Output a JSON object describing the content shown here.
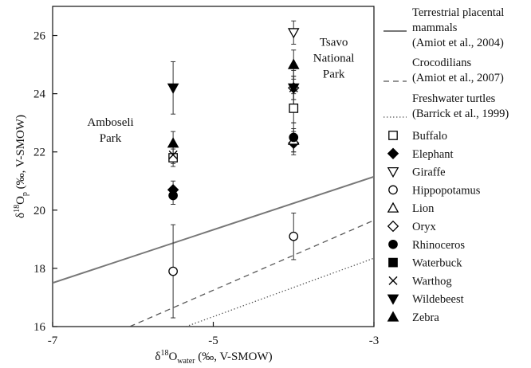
{
  "chart_data": {
    "type": "scatter",
    "xlabel": {
      "base": "δ",
      "sup": "18",
      "mid": "O",
      "sub": "water",
      "rest": " (‰, V-SMOW)"
    },
    "ylabel": {
      "base": "δ",
      "sup": "18",
      "mid": "O",
      "sub": "p",
      "rest": " (‰, V-SMOW)"
    },
    "xlim": [
      -7,
      -3
    ],
    "ylim": [
      16,
      27
    ],
    "x_ticks": [
      -7,
      -5,
      -3
    ],
    "x_tick_labels": [
      "-7",
      "-5",
      "-3"
    ],
    "y_ticks": [
      16,
      18,
      20,
      22,
      24,
      26
    ],
    "y_tick_labels": [
      "16",
      "18",
      "20",
      "22",
      "24",
      "26"
    ],
    "grid": false,
    "legend_position": "right",
    "annotations": [
      {
        "lines": [
          "Amboseli",
          "Park"
        ],
        "x": -6.28,
        "y": 22.9,
        "anchor": "middle"
      },
      {
        "lines": [
          "Tsavo",
          "National",
          "Park"
        ],
        "x": -3.5,
        "y": 25.65,
        "anchor": "middle"
      }
    ],
    "lines": [
      {
        "name_lines": [
          "Terrestrial placental",
          "mammals",
          "(Amiot et al., 2004)"
        ],
        "style": "solid",
        "color": "#777777",
        "x": [
          -7,
          -3
        ],
        "y": [
          17.5,
          21.15
        ]
      },
      {
        "name_lines": [
          "Crocodilians",
          "(Amiot et al., 2007)"
        ],
        "style": "dashed",
        "color": "#555555",
        "x": [
          -6.04,
          -3
        ],
        "y": [
          16.0,
          19.65
        ]
      },
      {
        "name_lines": [
          "Freshwater turtles",
          "(Barrick et al., 1999)"
        ],
        "style": "dotted",
        "color": "#555555",
        "x": [
          -5.34,
          -3
        ],
        "y": [
          16.0,
          18.35
        ]
      }
    ],
    "series": [
      {
        "name": "Buffalo",
        "marker": "square-open",
        "points": [
          {
            "x": -5.5,
            "y": 21.8,
            "err": 0.3
          },
          {
            "x": -4.0,
            "y": 23.5,
            "err": 0.5
          }
        ]
      },
      {
        "name": "Elephant",
        "marker": "diamond-filled",
        "points": [
          {
            "x": -5.5,
            "y": 20.7,
            "err": 0.3
          },
          {
            "x": -4.0,
            "y": 22.3,
            "err": 0.4
          }
        ]
      },
      {
        "name": "Giraffe",
        "marker": "triangle-down-open",
        "points": [
          {
            "x": -4.0,
            "y": 26.1,
            "err": 0.4
          }
        ]
      },
      {
        "name": "Hippopotamus",
        "marker": "circle-open",
        "points": [
          {
            "x": -5.5,
            "y": 17.9,
            "err": 1.6
          },
          {
            "x": -4.0,
            "y": 19.1,
            "err": 0.8
          }
        ]
      },
      {
        "name": "Lion",
        "marker": "triangle-up-open",
        "points": [
          {
            "x": -4.0,
            "y": 22.4,
            "err": 0.4
          }
        ]
      },
      {
        "name": "Oryx",
        "marker": "diamond-open",
        "points": [
          {
            "x": -4.0,
            "y": 24.2,
            "err": 0.4
          }
        ]
      },
      {
        "name": "Rhinoceros",
        "marker": "circle-filled",
        "points": [
          {
            "x": -5.5,
            "y": 20.5,
            "err": 0.3
          },
          {
            "x": -4.0,
            "y": 22.5,
            "err": 0.5
          }
        ]
      },
      {
        "name": "Waterbuck",
        "marker": "square-filled",
        "points": []
      },
      {
        "name": "Warthog",
        "marker": "x",
        "points": [
          {
            "x": -5.5,
            "y": 21.9,
            "err": 0.3
          },
          {
            "x": -4.0,
            "y": 24.2,
            "err": 0.4
          }
        ]
      },
      {
        "name": "Wildebeest",
        "marker": "triangle-down-filled",
        "points": [
          {
            "x": -5.5,
            "y": 24.2,
            "err": 0.9
          },
          {
            "x": -4.0,
            "y": 24.2,
            "err": 0.6
          }
        ]
      },
      {
        "name": "Zebra",
        "marker": "triangle-up-filled",
        "points": [
          {
            "x": -5.5,
            "y": 22.3,
            "err": 0.4
          },
          {
            "x": -4.0,
            "y": 25.0,
            "err": 0.5
          }
        ]
      }
    ]
  }
}
